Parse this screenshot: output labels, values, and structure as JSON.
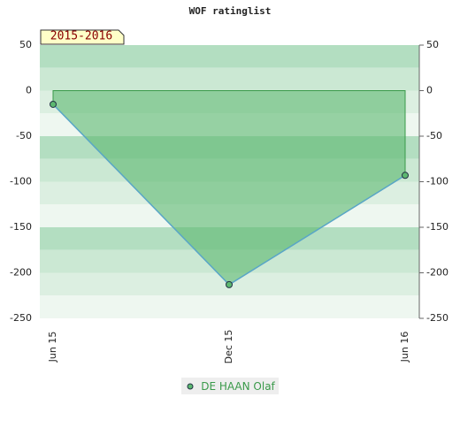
{
  "chart_data": {
    "type": "area",
    "title": "WOF ratinglist",
    "annotation": "2015-2016",
    "categories": [
      "Jun 15",
      "Dec 15",
      "Jun 16"
    ],
    "series": [
      {
        "name": "DE HAAN Olaf",
        "color": "#5aa6c8",
        "values": [
          -15,
          -213,
          -93
        ]
      }
    ],
    "ylim": [
      -250,
      50
    ],
    "yticks": [
      -250,
      -200,
      -150,
      -100,
      -50,
      0,
      50
    ],
    "grid": true
  }
}
